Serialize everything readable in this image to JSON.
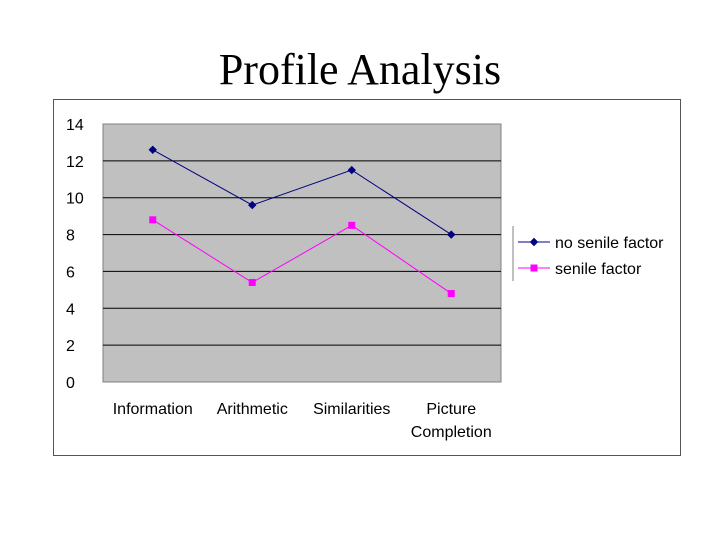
{
  "slide": {
    "title": "Profile Analysis"
  },
  "chart_data": {
    "type": "line",
    "categories": [
      "Information",
      "Arithmetic",
      "Similarities",
      "Picture Completion"
    ],
    "category_lines": [
      [
        "Information"
      ],
      [
        "Arithmetic"
      ],
      [
        "Similarities"
      ],
      [
        "Picture",
        "Completion"
      ]
    ],
    "ylim": [
      0,
      14
    ],
    "yticks": [
      "0",
      "2",
      "4",
      "6",
      "8",
      "10",
      "12",
      "14"
    ],
    "grid": true,
    "legend_position": "right",
    "plot_background": "#c0c0c0",
    "series": [
      {
        "name": "no senile factor",
        "values": [
          12.6,
          9.6,
          11.5,
          8.0
        ],
        "color": "#000080",
        "marker": "diamond"
      },
      {
        "name": "senile factor",
        "values": [
          8.8,
          5.4,
          8.5,
          4.8
        ],
        "color": "#ff00ff",
        "marker": "square"
      }
    ]
  }
}
